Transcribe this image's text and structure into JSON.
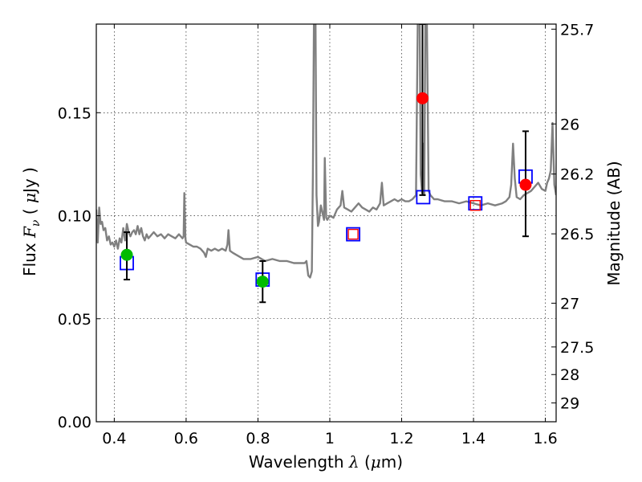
{
  "chart_data": {
    "type": "line",
    "title": "",
    "xlabel": {
      "prefix": "Wavelength ",
      "symbol": "λ",
      "unit_open": " (",
      "unit_symbol": "μ",
      "unit_close": "m)"
    },
    "ylabel": {
      "prefix": "Flux ",
      "symbol": "F",
      "subscript": "ν",
      "unit_open": " ( ",
      "unit_symbol": "μ",
      "unit_close": "Jy )"
    },
    "ylabel_right": "Magnitude (AB)",
    "xlim": [
      0.35,
      1.63
    ],
    "ylim": [
      0.0,
      0.193
    ],
    "grid": true,
    "x_ticks": [
      {
        "value": 0.4,
        "label": "0.4"
      },
      {
        "value": 0.6,
        "label": "0.6"
      },
      {
        "value": 0.8,
        "label": "0.8"
      },
      {
        "value": 1.0,
        "label": "1"
      },
      {
        "value": 1.2,
        "label": "1.2"
      },
      {
        "value": 1.4,
        "label": "1.4"
      },
      {
        "value": 1.6,
        "label": "1.6"
      }
    ],
    "y_ticks": [
      {
        "value": 0.0,
        "label": "0.00"
      },
      {
        "value": 0.05,
        "label": "0.05"
      },
      {
        "value": 0.1,
        "label": "0.10"
      },
      {
        "value": 0.15,
        "label": "0.15"
      }
    ],
    "mag_ticks": [
      {
        "mag": 25.7,
        "label": "25.7"
      },
      {
        "mag": 26.0,
        "label": "26"
      },
      {
        "mag": 26.2,
        "label": "26.2"
      },
      {
        "mag": 26.5,
        "label": "26.5"
      },
      {
        "mag": 27.0,
        "label": "27"
      },
      {
        "mag": 27.5,
        "label": "27.5"
      },
      {
        "mag": 28.0,
        "label": "28"
      },
      {
        "mag": 29.0,
        "label": "29"
      }
    ],
    "series": [
      {
        "name": "model spectrum",
        "color": "#808080",
        "x": [
          0.35,
          0.354,
          0.358,
          0.362,
          0.366,
          0.37,
          0.375,
          0.38,
          0.385,
          0.39,
          0.395,
          0.4,
          0.405,
          0.41,
          0.415,
          0.42,
          0.425,
          0.43,
          0.435,
          0.44,
          0.445,
          0.45,
          0.455,
          0.46,
          0.465,
          0.47,
          0.475,
          0.48,
          0.485,
          0.49,
          0.495,
          0.5,
          0.51,
          0.52,
          0.53,
          0.54,
          0.55,
          0.56,
          0.57,
          0.58,
          0.59,
          0.593,
          0.595,
          0.598,
          0.6,
          0.61,
          0.62,
          0.63,
          0.64,
          0.65,
          0.655,
          0.66,
          0.67,
          0.68,
          0.69,
          0.7,
          0.71,
          0.715,
          0.718,
          0.722,
          0.73,
          0.74,
          0.76,
          0.78,
          0.8,
          0.82,
          0.84,
          0.86,
          0.88,
          0.9,
          0.92,
          0.93,
          0.935,
          0.94,
          0.945,
          0.95,
          0.953,
          0.956,
          0.96,
          0.963,
          0.967,
          0.97,
          0.975,
          0.98,
          0.984,
          0.986,
          0.99,
          0.993,
          1.0,
          1.01,
          1.02,
          1.03,
          1.035,
          1.04,
          1.05,
          1.06,
          1.07,
          1.08,
          1.09,
          1.1,
          1.11,
          1.12,
          1.13,
          1.14,
          1.145,
          1.15,
          1.16,
          1.17,
          1.18,
          1.19,
          1.2,
          1.21,
          1.22,
          1.23,
          1.24,
          1.245,
          1.25,
          1.253,
          1.257,
          1.26,
          1.263,
          1.266,
          1.27,
          1.275,
          1.28,
          1.285,
          1.29,
          1.3,
          1.32,
          1.34,
          1.36,
          1.38,
          1.4,
          1.42,
          1.44,
          1.46,
          1.48,
          1.49,
          1.5,
          1.505,
          1.51,
          1.515,
          1.52,
          1.53,
          1.54,
          1.55,
          1.56,
          1.57,
          1.58,
          1.59,
          1.6,
          1.605,
          1.61,
          1.615,
          1.62,
          1.625,
          1.63
        ],
        "y": [
          0.103,
          0.087,
          0.104,
          0.096,
          0.097,
          0.093,
          0.094,
          0.088,
          0.09,
          0.086,
          0.087,
          0.085,
          0.088,
          0.084,
          0.089,
          0.087,
          0.094,
          0.088,
          0.096,
          0.092,
          0.09,
          0.092,
          0.093,
          0.091,
          0.095,
          0.091,
          0.094,
          0.09,
          0.088,
          0.091,
          0.089,
          0.09,
          0.092,
          0.09,
          0.091,
          0.089,
          0.091,
          0.09,
          0.089,
          0.091,
          0.089,
          0.09,
          0.111,
          0.089,
          0.087,
          0.086,
          0.085,
          0.085,
          0.084,
          0.082,
          0.08,
          0.084,
          0.083,
          0.084,
          0.083,
          0.084,
          0.083,
          0.086,
          0.093,
          0.083,
          0.082,
          0.081,
          0.079,
          0.079,
          0.08,
          0.078,
          0.079,
          0.078,
          0.078,
          0.077,
          0.077,
          0.077,
          0.078,
          0.071,
          0.07,
          0.073,
          0.12,
          0.2,
          0.2,
          0.11,
          0.095,
          0.097,
          0.105,
          0.101,
          0.098,
          0.128,
          0.099,
          0.098,
          0.1,
          0.099,
          0.103,
          0.105,
          0.112,
          0.104,
          0.103,
          0.102,
          0.104,
          0.106,
          0.104,
          0.103,
          0.102,
          0.104,
          0.103,
          0.106,
          0.116,
          0.105,
          0.106,
          0.107,
          0.108,
          0.107,
          0.108,
          0.107,
          0.107,
          0.108,
          0.11,
          0.2,
          0.2,
          0.12,
          0.111,
          0.135,
          0.11,
          0.2,
          0.2,
          0.112,
          0.11,
          0.109,
          0.108,
          0.108,
          0.107,
          0.107,
          0.106,
          0.107,
          0.106,
          0.105,
          0.106,
          0.105,
          0.106,
          0.107,
          0.109,
          0.115,
          0.135,
          0.118,
          0.109,
          0.108,
          0.11,
          0.111,
          0.112,
          0.114,
          0.116,
          0.113,
          0.112,
          0.116,
          0.118,
          0.122,
          0.145,
          0.115,
          0.11
        ]
      }
    ],
    "markers": [
      {
        "name": "blue-squares",
        "color": "#0000ff",
        "points": [
          {
            "x": 0.435,
            "y": 0.077
          },
          {
            "x": 0.813,
            "y": 0.069
          },
          {
            "x": 1.065,
            "y": 0.091
          },
          {
            "x": 1.26,
            "y": 0.109
          },
          {
            "x": 1.405,
            "y": 0.106
          },
          {
            "x": 1.545,
            "y": 0.119
          }
        ]
      },
      {
        "name": "red-squares",
        "color": "#ff0000",
        "points": [
          {
            "x": 1.065,
            "y": 0.091
          },
          {
            "x": 1.405,
            "y": 0.105
          }
        ]
      },
      {
        "name": "green-points",
        "color": "#00bb00",
        "points": [
          {
            "x": 0.435,
            "y": 0.081,
            "err_low": 0.069,
            "err_high": 0.092
          },
          {
            "x": 0.813,
            "y": 0.068,
            "err_low": 0.058,
            "err_high": 0.078
          }
        ]
      },
      {
        "name": "red-points",
        "color": "#ff0000",
        "points": [
          {
            "x": 1.258,
            "y": 0.157,
            "err_low": 0.11,
            "err_high": 0.193
          },
          {
            "x": 1.545,
            "y": 0.115,
            "err_low": 0.09,
            "err_high": 0.141
          }
        ]
      }
    ]
  }
}
